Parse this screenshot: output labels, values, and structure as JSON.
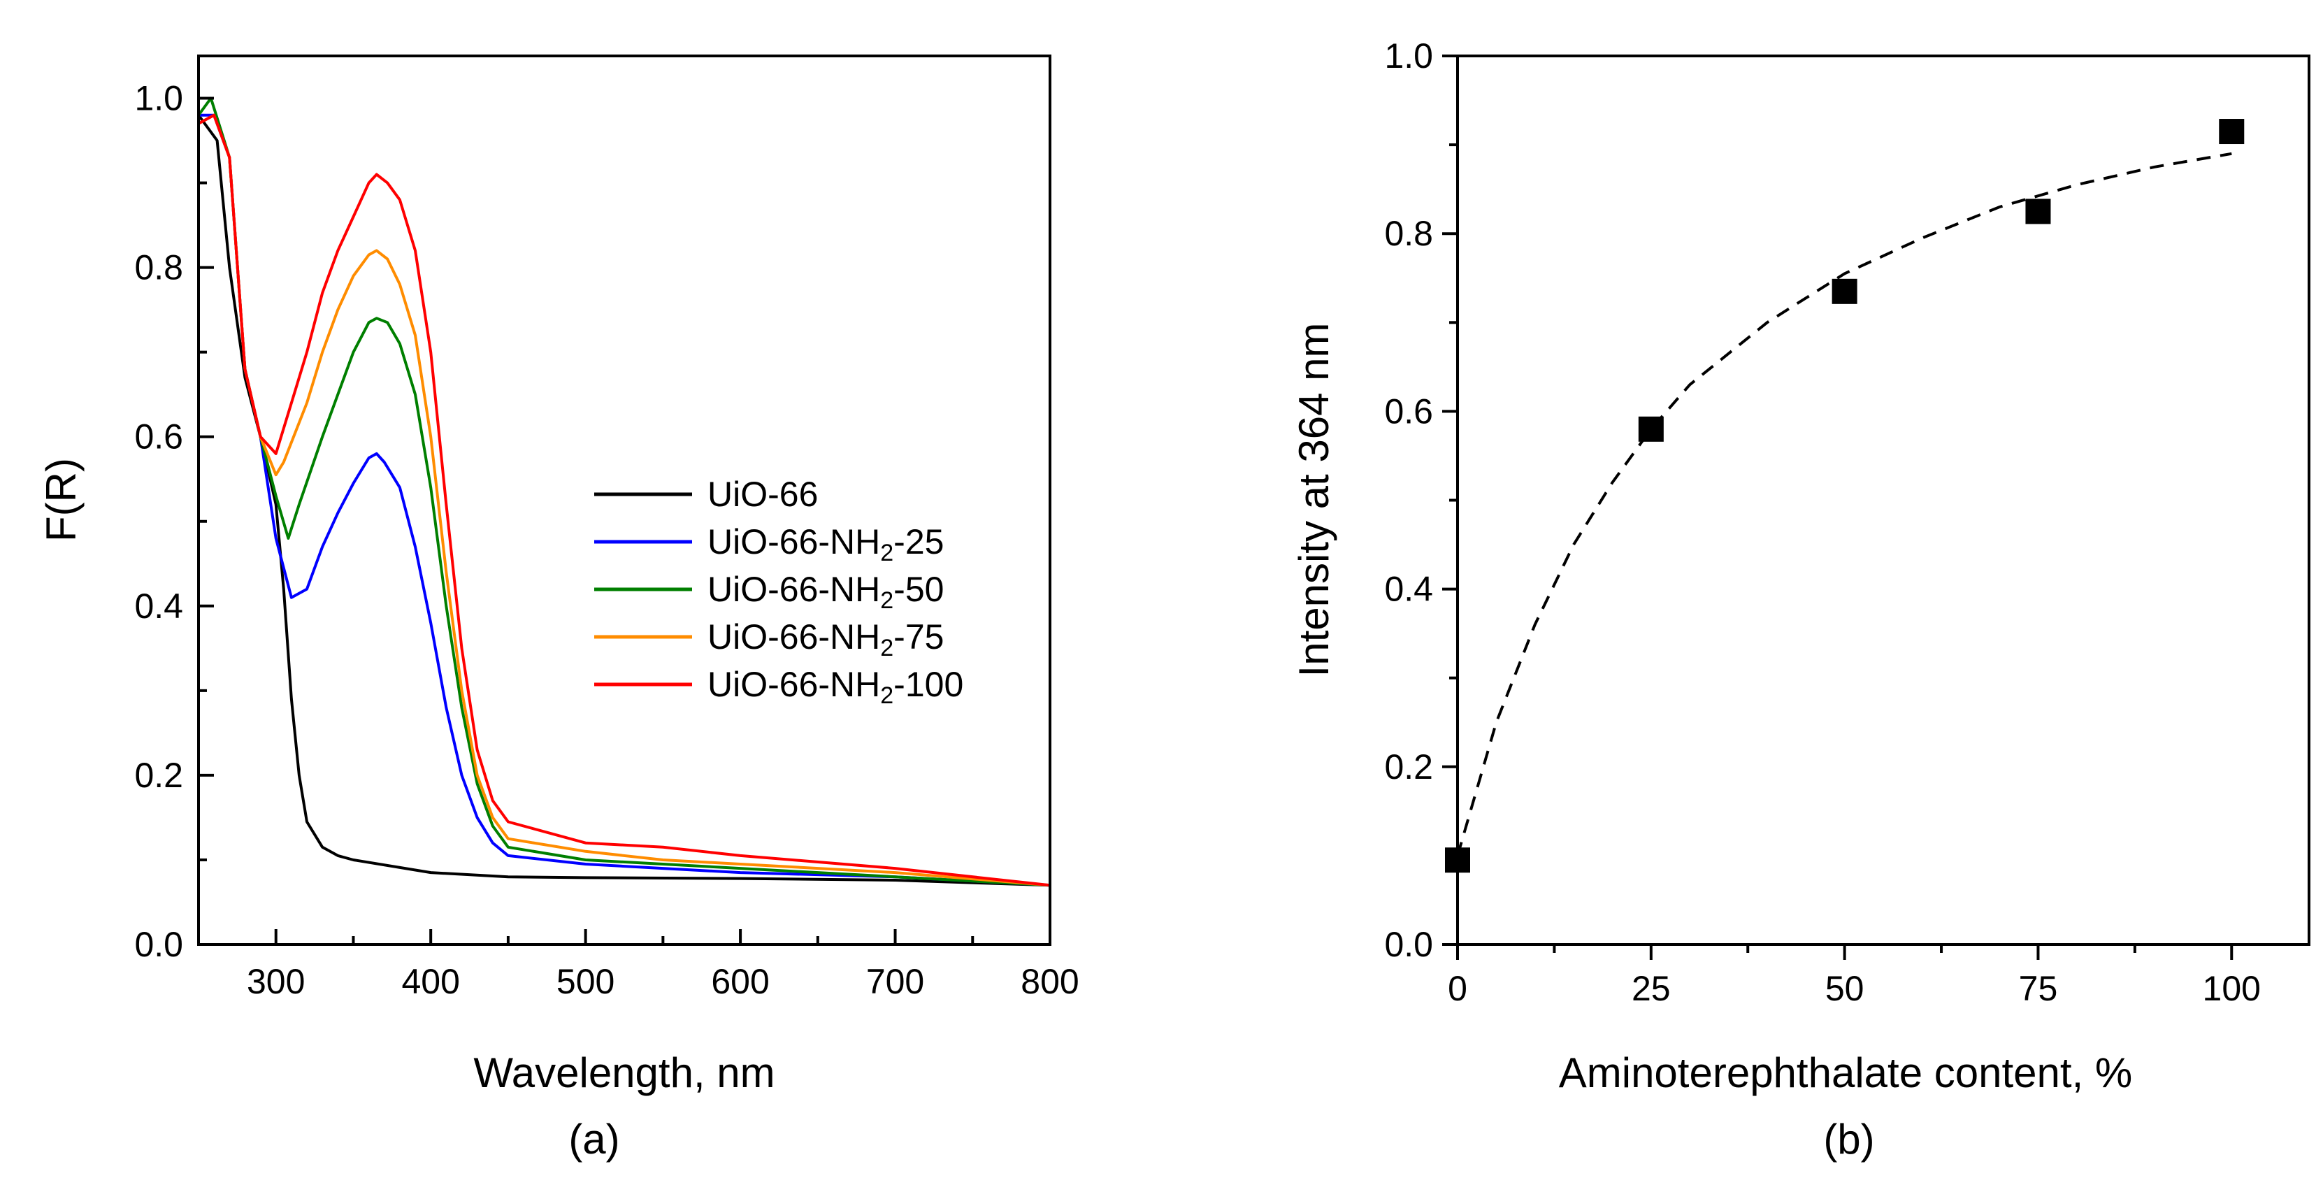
{
  "chart_data": [
    {
      "panel_label": "(a)",
      "type": "line",
      "xlabel": "Wavelength, nm",
      "ylabel": "F(R)",
      "xlim": [
        250,
        800
      ],
      "ylim": [
        0.0,
        1.05
      ],
      "xticks": [
        "300",
        "400",
        "500",
        "600",
        "700",
        "800"
      ],
      "yticks": [
        "0.0",
        "0.2",
        "0.4",
        "0.6",
        "0.8",
        "1.0"
      ],
      "legend_position": "center-right",
      "series": [
        {
          "name": "UiO-66",
          "name_base": "UiO-66",
          "name_sub": "",
          "name_suffix": "",
          "color": "#000000",
          "points": [
            [
              250,
              0.98
            ],
            [
              262,
              0.95
            ],
            [
              270,
              0.8
            ],
            [
              280,
              0.67
            ],
            [
              290,
              0.6
            ],
            [
              300,
              0.52
            ],
            [
              305,
              0.42
            ],
            [
              310,
              0.29
            ],
            [
              315,
              0.2
            ],
            [
              320,
              0.145
            ],
            [
              330,
              0.115
            ],
            [
              340,
              0.105
            ],
            [
              350,
              0.1
            ],
            [
              400,
              0.085
            ],
            [
              450,
              0.08
            ],
            [
              500,
              0.079
            ],
            [
              600,
              0.078
            ],
            [
              700,
              0.076
            ],
            [
              800,
              0.07
            ]
          ]
        },
        {
          "name": "UiO-66-NH2-25",
          "name_base": "UiO-66-NH",
          "name_sub": "2",
          "name_suffix": "-25",
          "color": "#0000FF",
          "points": [
            [
              250,
              0.98
            ],
            [
              260,
              0.98
            ],
            [
              270,
              0.93
            ],
            [
              280,
              0.68
            ],
            [
              290,
              0.6
            ],
            [
              300,
              0.48
            ],
            [
              310,
              0.41
            ],
            [
              320,
              0.42
            ],
            [
              330,
              0.47
            ],
            [
              340,
              0.51
            ],
            [
              350,
              0.545
            ],
            [
              360,
              0.575
            ],
            [
              365,
              0.58
            ],
            [
              370,
              0.57
            ],
            [
              380,
              0.54
            ],
            [
              390,
              0.47
            ],
            [
              400,
              0.38
            ],
            [
              410,
              0.28
            ],
            [
              420,
              0.2
            ],
            [
              430,
              0.15
            ],
            [
              440,
              0.12
            ],
            [
              450,
              0.105
            ],
            [
              500,
              0.095
            ],
            [
              550,
              0.09
            ],
            [
              600,
              0.085
            ],
            [
              700,
              0.08
            ],
            [
              800,
              0.07
            ]
          ]
        },
        {
          "name": "UiO-66-NH2-50",
          "name_base": "UiO-66-NH",
          "name_sub": "2",
          "name_suffix": "-50",
          "color": "#007F00",
          "points": [
            [
              250,
              0.98
            ],
            [
              258,
              1.0
            ],
            [
              270,
              0.93
            ],
            [
              280,
              0.68
            ],
            [
              290,
              0.6
            ],
            [
              300,
              0.53
            ],
            [
              308,
              0.48
            ],
            [
              315,
              0.52
            ],
            [
              330,
              0.6
            ],
            [
              340,
              0.65
            ],
            [
              350,
              0.7
            ],
            [
              360,
              0.735
            ],
            [
              365,
              0.74
            ],
            [
              372,
              0.735
            ],
            [
              380,
              0.71
            ],
            [
              390,
              0.65
            ],
            [
              400,
              0.54
            ],
            [
              410,
              0.4
            ],
            [
              420,
              0.28
            ],
            [
              430,
              0.19
            ],
            [
              440,
              0.14
            ],
            [
              450,
              0.115
            ],
            [
              500,
              0.1
            ],
            [
              550,
              0.095
            ],
            [
              600,
              0.09
            ],
            [
              700,
              0.08
            ],
            [
              800,
              0.07
            ]
          ]
        },
        {
          "name": "UiO-66-NH2-75",
          "name_base": "UiO-66-NH",
          "name_sub": "2",
          "name_suffix": "-75",
          "color": "#FF8C00",
          "points": [
            [
              250,
              0.97
            ],
            [
              260,
              0.98
            ],
            [
              270,
              0.93
            ],
            [
              280,
              0.68
            ],
            [
              290,
              0.6
            ],
            [
              300,
              0.555
            ],
            [
              305,
              0.57
            ],
            [
              320,
              0.64
            ],
            [
              330,
              0.7
            ],
            [
              340,
              0.75
            ],
            [
              350,
              0.79
            ],
            [
              360,
              0.815
            ],
            [
              365,
              0.82
            ],
            [
              372,
              0.81
            ],
            [
              380,
              0.78
            ],
            [
              390,
              0.72
            ],
            [
              400,
              0.6
            ],
            [
              410,
              0.44
            ],
            [
              420,
              0.3
            ],
            [
              430,
              0.2
            ],
            [
              440,
              0.15
            ],
            [
              450,
              0.125
            ],
            [
              500,
              0.11
            ],
            [
              550,
              0.1
            ],
            [
              600,
              0.095
            ],
            [
              700,
              0.085
            ],
            [
              800,
              0.07
            ]
          ]
        },
        {
          "name": "UiO-66-NH2-100",
          "name_base": "UiO-66-NH",
          "name_sub": "2",
          "name_suffix": "-100",
          "color": "#FF0000",
          "points": [
            [
              250,
              0.97
            ],
            [
              260,
              0.98
            ],
            [
              270,
              0.93
            ],
            [
              280,
              0.68
            ],
            [
              290,
              0.6
            ],
            [
              300,
              0.58
            ],
            [
              310,
              0.64
            ],
            [
              320,
              0.7
            ],
            [
              330,
              0.77
            ],
            [
              340,
              0.82
            ],
            [
              350,
              0.86
            ],
            [
              360,
              0.9
            ],
            [
              365,
              0.91
            ],
            [
              372,
              0.9
            ],
            [
              380,
              0.88
            ],
            [
              390,
              0.82
            ],
            [
              400,
              0.7
            ],
            [
              410,
              0.52
            ],
            [
              420,
              0.35
            ],
            [
              430,
              0.23
            ],
            [
              440,
              0.17
            ],
            [
              450,
              0.145
            ],
            [
              500,
              0.12
            ],
            [
              550,
              0.115
            ],
            [
              600,
              0.105
            ],
            [
              700,
              0.09
            ],
            [
              800,
              0.07
            ]
          ]
        }
      ]
    },
    {
      "panel_label": "(b)",
      "type": "scatter",
      "xlabel": "Aminoterephthalate content, %",
      "ylabel": "Intensity at 364 nm",
      "xlim": [
        0,
        110
      ],
      "ylim": [
        0.0,
        1.0
      ],
      "xticks": [
        "0",
        "25",
        "50",
        "75",
        "100"
      ],
      "yticks": [
        "0.0",
        "0.2",
        "0.4",
        "0.6",
        "0.8",
        "1.0"
      ],
      "points": {
        "x": [
          0,
          25,
          50,
          75,
          100
        ],
        "y": [
          0.095,
          0.58,
          0.735,
          0.825,
          0.915
        ]
      },
      "fit_curve": {
        "style": "dashed",
        "x": [
          0,
          5,
          10,
          15,
          20,
          25,
          30,
          40,
          50,
          60,
          70,
          80,
          90,
          100
        ],
        "y": [
          0.1,
          0.25,
          0.36,
          0.45,
          0.52,
          0.58,
          0.63,
          0.7,
          0.755,
          0.795,
          0.83,
          0.855,
          0.875,
          0.89
        ]
      }
    }
  ]
}
